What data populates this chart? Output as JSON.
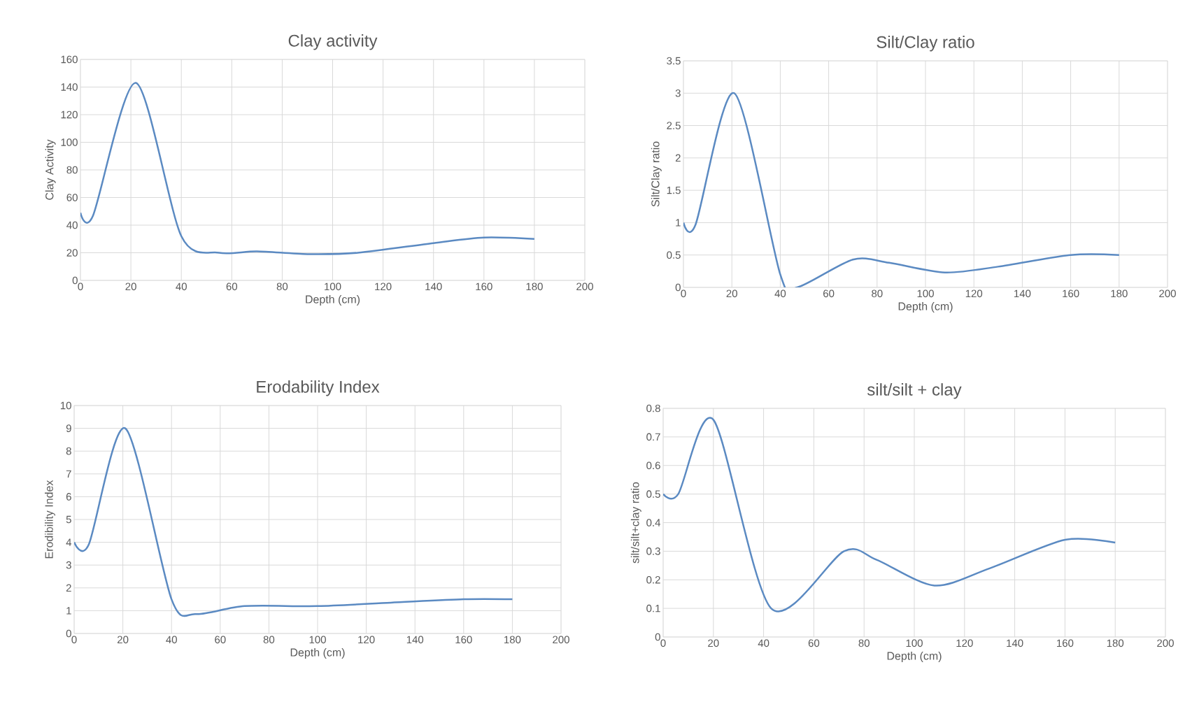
{
  "chart_data": [
    {
      "type": "line",
      "title": "Clay activity",
      "xlabel": "Depth (cm)",
      "ylabel": "Clay Activity",
      "grid": true,
      "xlim": [
        0,
        200
      ],
      "xticks": [
        0,
        20,
        40,
        60,
        80,
        100,
        120,
        140,
        160,
        180,
        200
      ],
      "ylim": [
        0,
        160
      ],
      "yticks": [
        0,
        20,
        40,
        60,
        80,
        100,
        120,
        140,
        160
      ],
      "series": [
        {
          "color": "#5b8ac2",
          "x": [
            0,
            5,
            22,
            40,
            55,
            70,
            90,
            110,
            140,
            160,
            180
          ],
          "values": [
            49,
            47,
            143,
            32,
            20,
            21,
            19,
            20,
            27,
            31,
            30
          ]
        }
      ]
    },
    {
      "type": "line",
      "title": "Silt/Clay ratio",
      "xlabel": "Depth (cm)",
      "ylabel": "Silt/Clay ratio",
      "grid": true,
      "xlim": [
        0,
        200
      ],
      "xticks": [
        0,
        20,
        40,
        60,
        80,
        100,
        120,
        140,
        160,
        180,
        200
      ],
      "ylim": [
        0,
        3.5
      ],
      "yticks": [
        0,
        0.5,
        1,
        1.5,
        2,
        2.5,
        3,
        3.5
      ],
      "series": [
        {
          "color": "#5b8ac2",
          "x": [
            0,
            5,
            21,
            40,
            47,
            70,
            85,
            108,
            130,
            160,
            180
          ],
          "values": [
            1.0,
            0.97,
            3.0,
            0.2,
            0.0,
            0.43,
            0.38,
            0.23,
            0.32,
            0.5,
            0.5
          ]
        }
      ]
    },
    {
      "type": "line",
      "title": "Erodability Index",
      "xlabel": "Depth (cm)",
      "ylabel": "Erodibility Index",
      "grid": true,
      "xlim": [
        0,
        200
      ],
      "xticks": [
        0,
        20,
        40,
        60,
        80,
        100,
        120,
        140,
        160,
        180,
        200
      ],
      "ylim": [
        0,
        10
      ],
      "yticks": [
        0,
        1,
        2,
        3,
        4,
        5,
        6,
        7,
        8,
        9,
        10
      ],
      "series": [
        {
          "color": "#5b8ac2",
          "x": [
            0,
            6,
            21,
            40,
            50,
            70,
            100,
            130,
            160,
            180
          ],
          "values": [
            4,
            3.9,
            9,
            1.5,
            0.85,
            1.2,
            1.2,
            1.35,
            1.5,
            1.5
          ]
        }
      ]
    },
    {
      "type": "line",
      "title": "silt/silt + clay",
      "xlabel": "Depth (cm)",
      "ylabel": "silt/silt+clay ratio",
      "grid": true,
      "xlim": [
        0,
        200
      ],
      "xticks": [
        0,
        20,
        40,
        60,
        80,
        100,
        120,
        140,
        160,
        180,
        200
      ],
      "ylim": [
        0,
        0.8
      ],
      "yticks": [
        0,
        0.1,
        0.2,
        0.3,
        0.4,
        0.5,
        0.6,
        0.7,
        0.8
      ],
      "series": [
        {
          "color": "#5b8ac2",
          "x": [
            0,
            6,
            20,
            43,
            72,
            85,
            108,
            130,
            160,
            180
          ],
          "values": [
            0.5,
            0.5,
            0.76,
            0.1,
            0.3,
            0.27,
            0.18,
            0.24,
            0.34,
            0.33
          ]
        }
      ]
    }
  ]
}
